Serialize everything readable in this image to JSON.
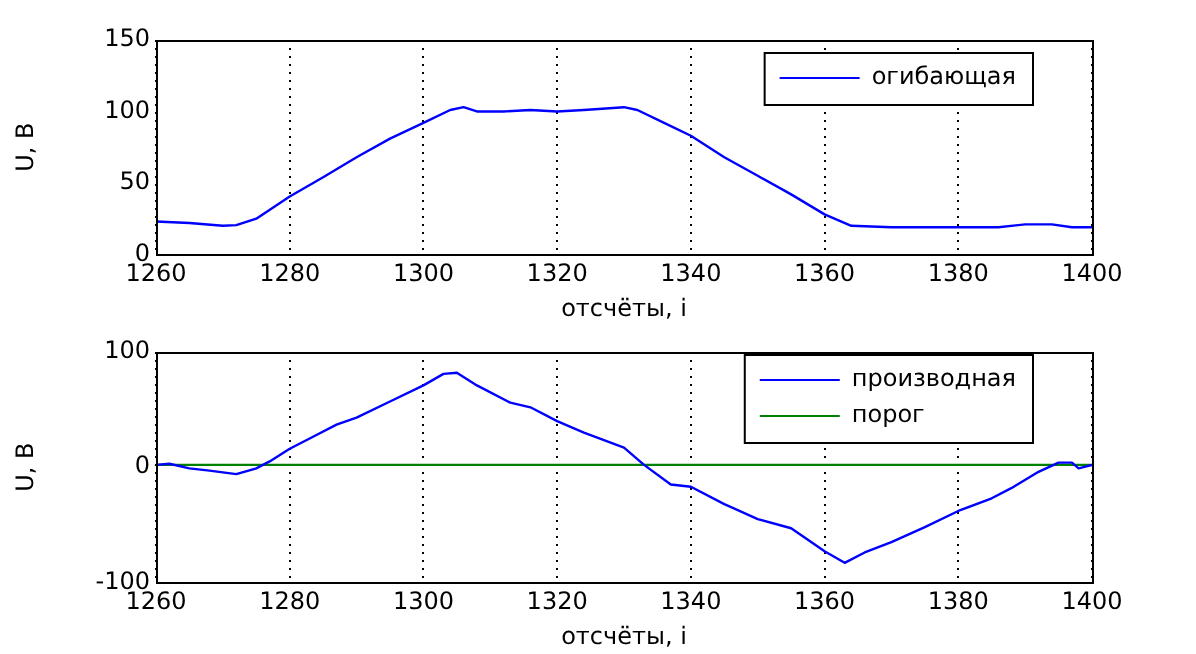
{
  "chart_data": [
    {
      "type": "line",
      "xlabel": "отсчёты, i",
      "ylabel": "U, В",
      "xlim": [
        1260,
        1400
      ],
      "xticks": [
        1260,
        1280,
        1300,
        1320,
        1340,
        1360,
        1380,
        1400
      ],
      "ylim": [
        0,
        150
      ],
      "yticks": [
        0,
        50,
        100,
        150
      ],
      "grid": "x",
      "legend": "top right",
      "line_style": "solid",
      "marker": "none",
      "series": [
        {
          "name": "огибающая",
          "color": "#0000ff",
          "x": [
            1260,
            1265,
            1270,
            1272,
            1275,
            1280,
            1285,
            1290,
            1295,
            1300,
            1304,
            1306,
            1308,
            1312,
            1316,
            1320,
            1324,
            1330,
            1332,
            1336,
            1340,
            1345,
            1350,
            1355,
            1360,
            1364,
            1370,
            1380,
            1386,
            1390,
            1394,
            1397,
            1400
          ],
          "values": [
            23,
            22,
            20,
            20.5,
            25,
            40.5,
            54,
            68,
            81,
            92,
            101,
            103,
            100,
            100,
            101,
            100,
            101,
            103,
            101,
            92,
            83,
            68,
            55,
            42,
            28,
            20,
            19,
            19,
            19,
            21,
            21,
            19,
            19
          ]
        }
      ]
    },
    {
      "type": "line",
      "xlabel": "отсчёты, i",
      "ylabel": "U, В",
      "xlim": [
        1260,
        1400
      ],
      "xticks": [
        1260,
        1280,
        1300,
        1320,
        1340,
        1360,
        1380,
        1400
      ],
      "ylim": [
        -100,
        100
      ],
      "yticks": [
        -100,
        0,
        100
      ],
      "grid": "x",
      "legend": "top right",
      "line_style": "solid",
      "marker": "none",
      "series": [
        {
          "name": "производная",
          "color": "#0000ff",
          "x": [
            1260,
            1262,
            1265,
            1268,
            1272,
            1275,
            1277,
            1280,
            1284,
            1287,
            1290,
            1295,
            1300,
            1303,
            1305,
            1308,
            1313,
            1316,
            1320,
            1324,
            1330,
            1333,
            1337,
            1340,
            1345,
            1350,
            1355,
            1360,
            1363,
            1366,
            1370,
            1375,
            1380,
            1385,
            1388,
            1392,
            1395,
            1397,
            1398,
            1400
          ],
          "values": [
            2,
            3,
            -1,
            -3,
            -6,
            -1,
            5,
            16,
            28,
            37,
            43,
            57,
            71,
            81,
            82,
            71,
            56,
            52,
            40,
            30,
            17,
            2,
            -15,
            -17,
            -32,
            -45,
            -53,
            -73,
            -83,
            -74,
            -65,
            -52,
            -38,
            -27,
            -18,
            -4,
            4,
            4,
            -1,
            2
          ]
        },
        {
          "name": "порог",
          "color": "#008000",
          "x": [
            1260,
            1400
          ],
          "values": [
            2,
            2
          ]
        }
      ]
    }
  ]
}
